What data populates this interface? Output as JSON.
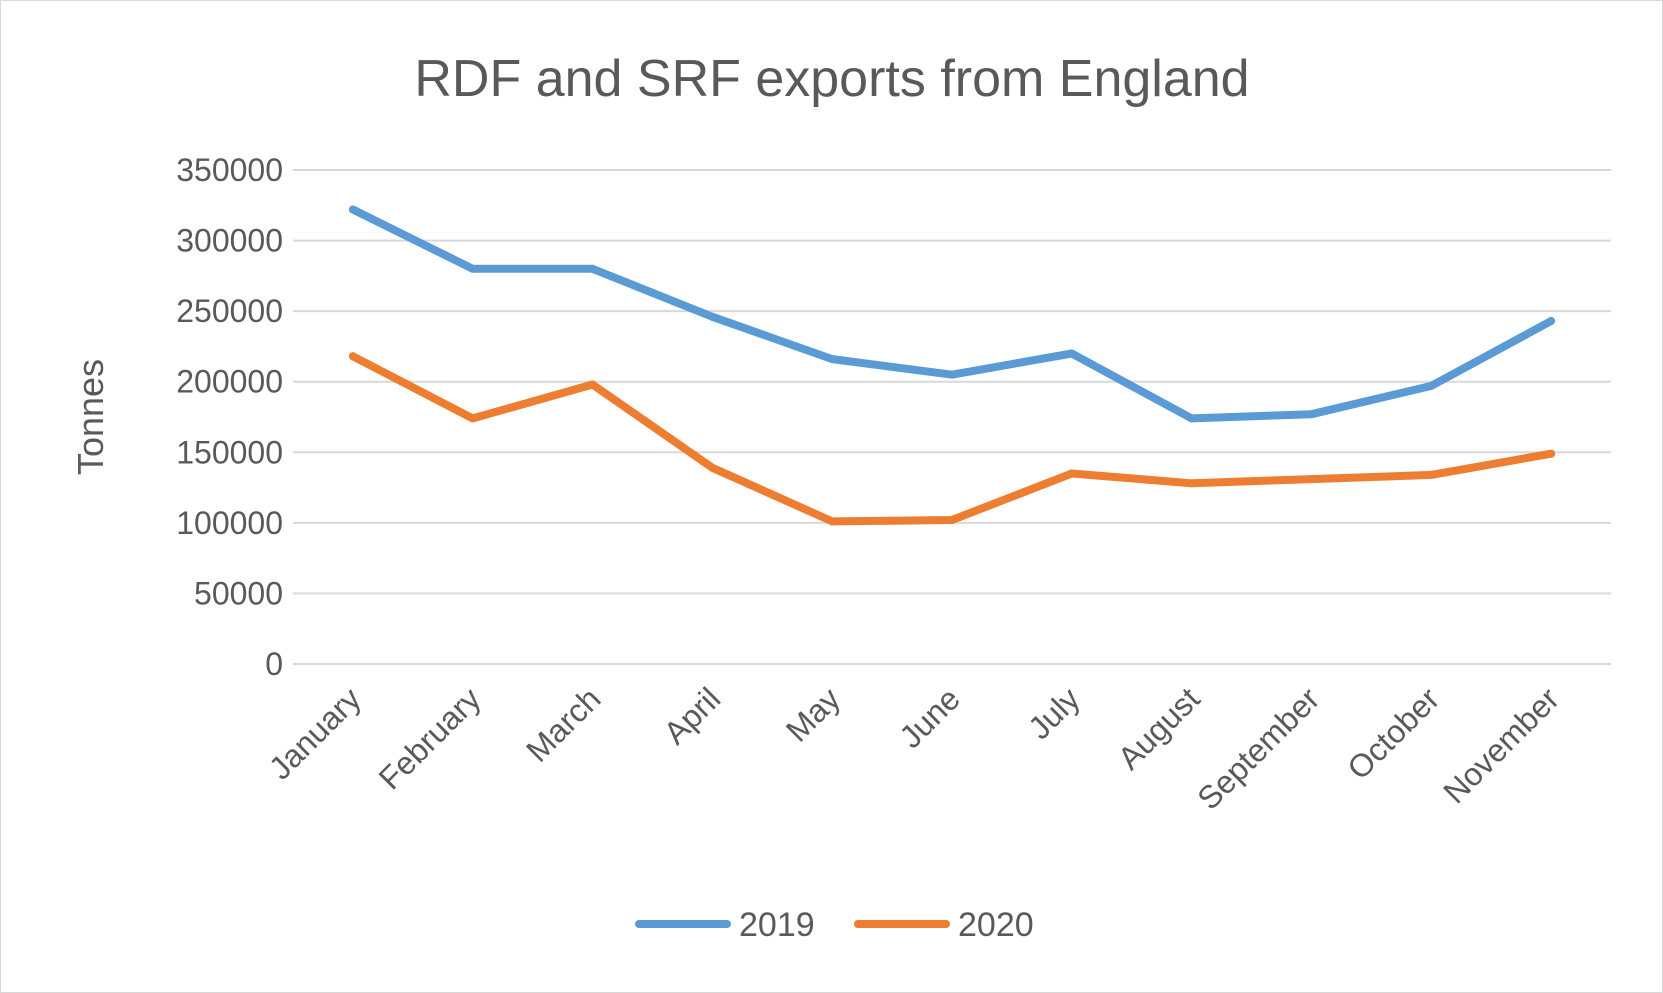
{
  "chart_data": {
    "type": "line",
    "title": "RDF and SRF exports from England",
    "xlabel": "",
    "ylabel": "Tonnes",
    "categories": [
      "January",
      "February",
      "March",
      "April",
      "May",
      "June",
      "July",
      "August",
      "September",
      "October",
      "November"
    ],
    "y_ticks": [
      "0",
      "50000",
      "100000",
      "150000",
      "200000",
      "250000",
      "300000",
      "350000"
    ],
    "ylim": [
      0,
      350000
    ],
    "grid": true,
    "legend_position": "bottom",
    "series": [
      {
        "name": "2019",
        "color": "#5b9bd5",
        "values": [
          322000,
          280000,
          280000,
          246000,
          216000,
          205000,
          220000,
          174000,
          177000,
          197000,
          243000
        ]
      },
      {
        "name": "2020",
        "color": "#ed7d31",
        "values": [
          218000,
          174000,
          198000,
          139000,
          101000,
          102000,
          135000,
          128000,
          131000,
          134000,
          149000
        ]
      }
    ]
  }
}
